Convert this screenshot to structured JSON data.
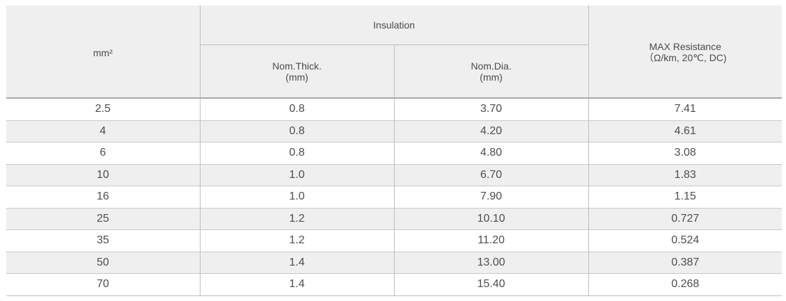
{
  "header": {
    "size_label": "mm²",
    "insulation_label": "Insulation",
    "thick_line1": "Nom.Thick.",
    "thick_line2": "(mm)",
    "dia_line1": "Nom.Dia.",
    "dia_line2": "(mm)",
    "res_line1": "MAX Resistance",
    "res_line2": "（Ω/km, 20℃, DC)"
  },
  "rows": [
    [
      "2.5",
      "0.8",
      "3.70",
      "7.41"
    ],
    [
      "4",
      "0.8",
      "4.20",
      "4.61"
    ],
    [
      "6",
      "0.8",
      "4.80",
      "3.08"
    ],
    [
      "10",
      "1.0",
      "6.70",
      "1.83"
    ],
    [
      "16",
      "1.0",
      "7.90",
      "1.15"
    ],
    [
      "25",
      "1.2",
      "10.10",
      "0.727"
    ],
    [
      "35",
      "1.2",
      "11.20",
      "0.524"
    ],
    [
      "50",
      "1.4",
      "13.00",
      "0.387"
    ],
    [
      "70",
      "1.4",
      "15.40",
      "0.268"
    ]
  ]
}
